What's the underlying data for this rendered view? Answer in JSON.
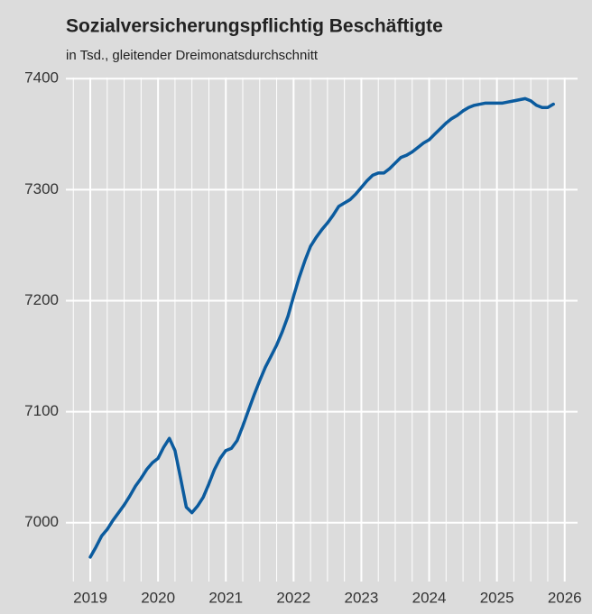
{
  "chart_data": {
    "type": "line",
    "title": "Sozialversicherungspflichtig Beschäftigte",
    "subtitle": "in Tsd., gleitender Dreimonatsdurchschnitt",
    "x": [
      2019,
      2019.083,
      2019.167,
      2019.25,
      2019.333,
      2019.417,
      2019.5,
      2019.583,
      2019.667,
      2019.75,
      2019.833,
      2019.917,
      2020,
      2020.083,
      2020.167,
      2020.25,
      2020.333,
      2020.417,
      2020.5,
      2020.583,
      2020.667,
      2020.75,
      2020.833,
      2020.917,
      2021,
      2021.083,
      2021.167,
      2021.25,
      2021.333,
      2021.417,
      2021.5,
      2021.583,
      2021.667,
      2021.75,
      2021.833,
      2021.917,
      2022,
      2022.083,
      2022.167,
      2022.25,
      2022.333,
      2022.417,
      2022.5,
      2022.583,
      2022.667,
      2022.75,
      2022.833,
      2022.917,
      2023,
      2023.083,
      2023.167,
      2023.25,
      2023.333,
      2023.417,
      2023.5,
      2023.583,
      2023.667,
      2023.75,
      2023.833,
      2023.917,
      2024,
      2024.083,
      2024.167,
      2024.25,
      2024.333,
      2024.417,
      2024.5,
      2024.583,
      2024.667,
      2024.75,
      2024.833,
      2024.917,
      2025,
      2025.083,
      2025.167,
      2025.25,
      2025.333,
      2025.417,
      2025.5,
      2025.583,
      2025.667,
      2025.75,
      2025.833
    ],
    "series": [
      {
        "name": "Sozialversicherungspflichtig Beschäftigte",
        "color": "#0b5b9e",
        "values": [
          6969,
          6978,
          6988,
          6994,
          7002,
          7009,
          7016,
          7024,
          7033,
          7040,
          7048,
          7054,
          7058,
          7068,
          7076,
          7065,
          7040,
          7014,
          7009,
          7015,
          7023,
          7035,
          7048,
          7058,
          7065,
          7067,
          7074,
          7087,
          7101,
          7115,
          7128,
          7140,
          7150,
          7160,
          7172,
          7186,
          7204,
          7221,
          7236,
          7249,
          7257,
          7264,
          7270,
          7277,
          7285,
          7288,
          7291,
          7296,
          7302,
          7308,
          7313,
          7315,
          7315,
          7319,
          7324,
          7329,
          7331,
          7334,
          7338,
          7342,
          7345,
          7350,
          7355,
          7360,
          7364,
          7367,
          7371,
          7374,
          7376,
          7377,
          7378,
          7378,
          7378,
          7378,
          7379,
          7380,
          7381,
          7382,
          7380,
          7376,
          7374,
          7374,
          7377
        ]
      }
    ],
    "xlim": [
      2018.64,
      2026.19
    ],
    "xticks": [
      2019,
      2020,
      2021,
      2022,
      2023,
      2024,
      2025,
      2026
    ],
    "x_minor_ticks": [
      2018.75,
      2019.25,
      2019.5,
      2019.75,
      2020.25,
      2020.5,
      2020.75,
      2021.25,
      2021.5,
      2021.75,
      2022.25,
      2022.5,
      2022.75,
      2023.25,
      2023.5,
      2023.75,
      2024.25,
      2024.5,
      2024.75,
      2025.25,
      2025.5,
      2025.75
    ],
    "ylim": [
      6947,
      7401
    ],
    "yticks": [
      7000,
      7100,
      7200,
      7300,
      7400
    ],
    "grid": true
  }
}
